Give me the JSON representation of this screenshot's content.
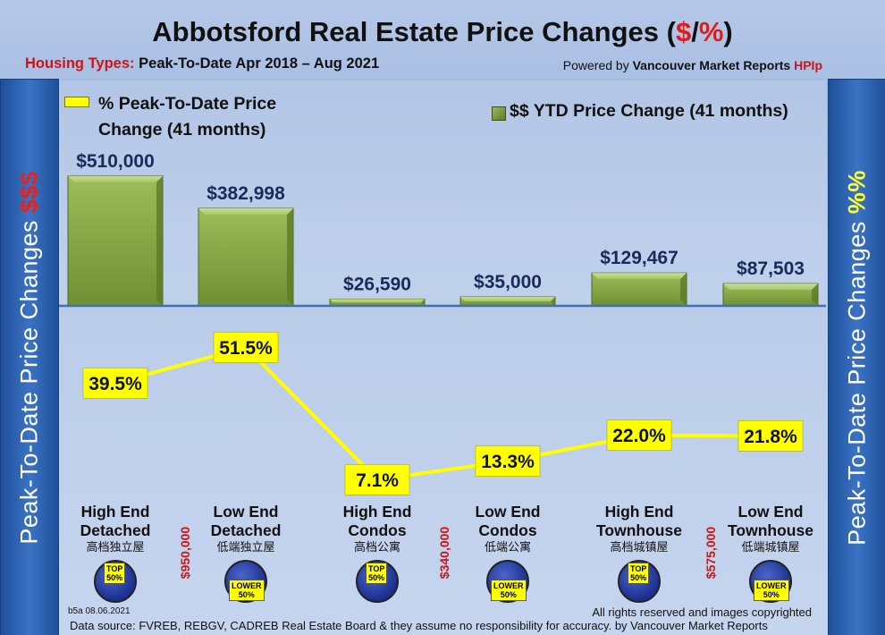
{
  "title": {
    "prefix": "Abbotsford Real Estate Price Changes (",
    "dollar": "$",
    "slash": "/",
    "percent": "%",
    "suffix": ")"
  },
  "subtitle": {
    "label": "Housing Types:",
    "range": "Peak-To-Date Apr 2018 – Aug 2021",
    "powered_prefix": "Powered by",
    "powered_brand": "Vancouver Market Reports",
    "powered_hpi": "HPIp"
  },
  "side": {
    "left_text": "Peak-To-Date Price Changes",
    "left_accent": "$$$",
    "right_text": "Peak-To-Date  Price  Changes",
    "right_accent": "%%"
  },
  "legend": {
    "line_label_1": "% Peak-To-Date Price",
    "line_label_2": "Change (41 months)",
    "bar_label": "$$ YTD Price Change (41 months)"
  },
  "colors": {
    "bar": "#7f9f3f",
    "line": "#ffff00",
    "baseline": "#3f6fb5"
  },
  "chart_data": {
    "type": "bar",
    "categories": [
      "High End Detached",
      "Low End Detached",
      "High End Condos",
      "Low End Condos",
      "High End Townhouse",
      "Low End Townhouse"
    ],
    "series": [
      {
        "name": "$$ YTD Price Change (41 months)",
        "type": "bar",
        "values": [
          510000,
          382998,
          26590,
          35000,
          129467,
          87503
        ]
      },
      {
        "name": "% Peak-To-Date Price Change (41 months)",
        "type": "line",
        "values": [
          39.5,
          51.5,
          7.1,
          13.3,
          22.0,
          21.8
        ]
      }
    ],
    "bar_labels": [
      "$510,000",
      "$382,998",
      "$26,590",
      "$35,000",
      "$129,467",
      "$87,503"
    ],
    "line_labels": [
      "39.5%",
      "51.5%",
      "7.1%",
      "13.3%",
      "22.0%",
      "21.8%"
    ],
    "bar_ylim": [
      0,
      520000
    ],
    "line_ylim": [
      0,
      60
    ],
    "grid": false,
    "legend_position": "top"
  },
  "categories_display": [
    {
      "line1": "High End",
      "line2": "Detached",
      "zh": "高档独立屋",
      "badge": "TOP\n50%"
    },
    {
      "line1": "Low End",
      "line2": "Detached",
      "zh": "低端独立屋",
      "badge": "LOWER\n50%"
    },
    {
      "line1": "High End",
      "line2": "Condos",
      "zh": "高档公寓",
      "badge": "TOP\n50%"
    },
    {
      "line1": "Low End",
      "line2": "Condos",
      "zh": "低端公寓",
      "badge": "LOWER\n50%"
    },
    {
      "line1": "High End",
      "line2": "Townhouse",
      "zh": "高档城镇屋",
      "badge": "TOP\n50%"
    },
    {
      "line1": "Low End",
      "line2": "Townhouse",
      "zh": "低端城镇屋",
      "badge": "LOWER\n50%"
    }
  ],
  "thresholds": [
    "$950,000",
    "$340,000",
    "$575,000"
  ],
  "footer": {
    "code": "b5a 08.06.2021",
    "rights": "All rights reserved and  images copyrighted",
    "source": "Data source: FVREB, REBGV, CADREB Real Estate Board & they assume no responsibility for accuracy. by Vancouver Market Reports"
  }
}
